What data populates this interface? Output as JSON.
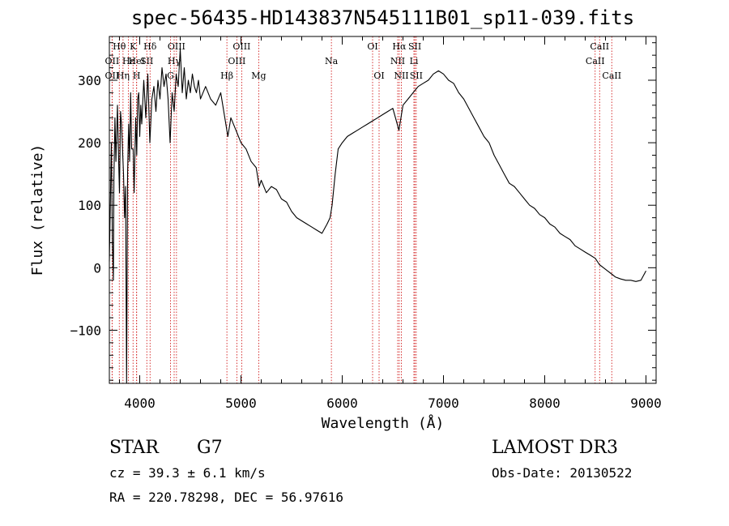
{
  "title": "spec-56435-HD143837N545111B01_sp11-039.fits",
  "info": {
    "object_class": "STAR",
    "subclass": "G7",
    "survey": "LAMOST DR3",
    "cz": "cz = 39.3 ± 6.1 km/s",
    "obs_date": "Obs-Date: 20130522",
    "coords": "RA = 220.78298, DEC =  56.97616"
  },
  "chart_data": {
    "type": "line",
    "title": "spec-56435-HD143837N545111B01_sp11-039.fits",
    "xlabel": "Wavelength (Å)",
    "ylabel": "Flux (relative)",
    "xlim": [
      3700,
      9100
    ],
    "ylim": [
      -185,
      370
    ],
    "xticks": [
      4000,
      5000,
      6000,
      7000,
      8000,
      9000
    ],
    "yticks": [
      -100,
      0,
      100,
      200,
      300
    ],
    "series": [
      {
        "name": "flux",
        "points": [
          [
            3700,
            10
          ],
          [
            3720,
            200
          ],
          [
            3730,
            40
          ],
          [
            3740,
            -20
          ],
          [
            3745,
            140
          ],
          [
            3755,
            240
          ],
          [
            3765,
            170
          ],
          [
            3780,
            260
          ],
          [
            3790,
            180
          ],
          [
            3800,
            120
          ],
          [
            3810,
            250
          ],
          [
            3820,
            230
          ],
          [
            3840,
            150
          ],
          [
            3850,
            80
          ],
          [
            3860,
            130
          ],
          [
            3870,
            -185
          ],
          [
            3880,
            150
          ],
          [
            3890,
            230
          ],
          [
            3900,
            170
          ],
          [
            3910,
            280
          ],
          [
            3920,
            190
          ],
          [
            3935,
            190
          ],
          [
            3945,
            120
          ],
          [
            3960,
            240
          ],
          [
            3970,
            180
          ],
          [
            3980,
            270
          ],
          [
            3990,
            280
          ],
          [
            4000,
            210
          ],
          [
            4010,
            260
          ],
          [
            4020,
            230
          ],
          [
            4040,
            300
          ],
          [
            4060,
            240
          ],
          [
            4080,
            310
          ],
          [
            4100,
            200
          ],
          [
            4120,
            270
          ],
          [
            4140,
            290
          ],
          [
            4160,
            250
          ],
          [
            4180,
            300
          ],
          [
            4200,
            270
          ],
          [
            4220,
            320
          ],
          [
            4240,
            290
          ],
          [
            4260,
            310
          ],
          [
            4280,
            270
          ],
          [
            4300,
            200
          ],
          [
            4320,
            280
          ],
          [
            4340,
            250
          ],
          [
            4360,
            310
          ],
          [
            4380,
            290
          ],
          [
            4400,
            350
          ],
          [
            4420,
            280
          ],
          [
            4440,
            320
          ],
          [
            4460,
            270
          ],
          [
            4480,
            300
          ],
          [
            4500,
            280
          ],
          [
            4520,
            310
          ],
          [
            4540,
            290
          ],
          [
            4560,
            280
          ],
          [
            4580,
            300
          ],
          [
            4600,
            270
          ],
          [
            4650,
            290
          ],
          [
            4700,
            270
          ],
          [
            4750,
            260
          ],
          [
            4800,
            280
          ],
          [
            4850,
            230
          ],
          [
            4870,
            210
          ],
          [
            4900,
            240
          ],
          [
            4950,
            220
          ],
          [
            5000,
            200
          ],
          [
            5050,
            190
          ],
          [
            5100,
            170
          ],
          [
            5150,
            160
          ],
          [
            5180,
            130
          ],
          [
            5200,
            140
          ],
          [
            5250,
            120
          ],
          [
            5300,
            130
          ],
          [
            5350,
            125
          ],
          [
            5400,
            110
          ],
          [
            5450,
            105
          ],
          [
            5500,
            90
          ],
          [
            5550,
            80
          ],
          [
            5600,
            75
          ],
          [
            5650,
            70
          ],
          [
            5700,
            65
          ],
          [
            5750,
            60
          ],
          [
            5800,
            55
          ],
          [
            5850,
            70
          ],
          [
            5880,
            80
          ],
          [
            5900,
            100
          ],
          [
            5930,
            150
          ],
          [
            5960,
            190
          ],
          [
            6000,
            200
          ],
          [
            6050,
            210
          ],
          [
            6100,
            215
          ],
          [
            6150,
            220
          ],
          [
            6200,
            225
          ],
          [
            6250,
            230
          ],
          [
            6300,
            235
          ],
          [
            6350,
            240
          ],
          [
            6400,
            245
          ],
          [
            6450,
            250
          ],
          [
            6500,
            255
          ],
          [
            6560,
            220
          ],
          [
            6600,
            260
          ],
          [
            6650,
            270
          ],
          [
            6700,
            280
          ],
          [
            6750,
            290
          ],
          [
            6800,
            295
          ],
          [
            6850,
            300
          ],
          [
            6900,
            310
          ],
          [
            6950,
            315
          ],
          [
            7000,
            310
          ],
          [
            7050,
            300
          ],
          [
            7100,
            295
          ],
          [
            7150,
            280
          ],
          [
            7200,
            270
          ],
          [
            7250,
            255
          ],
          [
            7300,
            240
          ],
          [
            7350,
            225
          ],
          [
            7400,
            210
          ],
          [
            7450,
            200
          ],
          [
            7500,
            180
          ],
          [
            7550,
            165
          ],
          [
            7600,
            150
          ],
          [
            7650,
            135
          ],
          [
            7700,
            130
          ],
          [
            7750,
            120
          ],
          [
            7800,
            110
          ],
          [
            7850,
            100
          ],
          [
            7900,
            95
          ],
          [
            7950,
            85
          ],
          [
            8000,
            80
          ],
          [
            8050,
            70
          ],
          [
            8100,
            65
          ],
          [
            8150,
            55
          ],
          [
            8200,
            50
          ],
          [
            8250,
            45
          ],
          [
            8300,
            35
          ],
          [
            8350,
            30
          ],
          [
            8400,
            25
          ],
          [
            8450,
            20
          ],
          [
            8500,
            15
          ],
          [
            8540,
            5
          ],
          [
            8580,
            0
          ],
          [
            8620,
            -5
          ],
          [
            8660,
            -10
          ],
          [
            8700,
            -15
          ],
          [
            8750,
            -18
          ],
          [
            8800,
            -20
          ],
          [
            8850,
            -20
          ],
          [
            8900,
            -22
          ],
          [
            8950,
            -20
          ],
          [
            9000,
            -5
          ]
        ]
      }
    ],
    "line_markers": [
      {
        "label": "Hθ",
        "wavelength": 3798,
        "row": 0
      },
      {
        "label": "K",
        "wavelength": 3934,
        "row": 0
      },
      {
        "label": "Hδ",
        "wavelength": 4102,
        "row": 0
      },
      {
        "label": "OII",
        "wavelength": 3727,
        "row": 1
      },
      {
        "label": "Hε",
        "wavelength": 3889,
        "row": 1
      },
      {
        "label": "HeI",
        "wavelength": 3970,
        "row": 1
      },
      {
        "label": "SII",
        "wavelength": 4070,
        "row": 1
      },
      {
        "label": "OII",
        "wavelength": 3727,
        "row": 2
      },
      {
        "label": "Hη",
        "wavelength": 3835,
        "row": 2
      },
      {
        "label": "H",
        "wavelength": 3969,
        "row": 2
      },
      {
        "label": "OIII",
        "wavelength": 4363,
        "row": 0
      },
      {
        "label": "Hγ",
        "wavelength": 4340,
        "row": 1
      },
      {
        "label": "G",
        "wavelength": 4304,
        "row": 2
      },
      {
        "label": "OIII",
        "wavelength": 5007,
        "row": 0
      },
      {
        "label": "OIII",
        "wavelength": 4959,
        "row": 1
      },
      {
        "label": "Hβ",
        "wavelength": 4861,
        "row": 2
      },
      {
        "label": "Mg",
        "wavelength": 5175,
        "row": 2
      },
      {
        "label": "Na",
        "wavelength": 5893,
        "row": 1
      },
      {
        "label": "OI",
        "wavelength": 6300,
        "row": 0
      },
      {
        "label": "OI",
        "wavelength": 6364,
        "row": 2
      },
      {
        "label": "Hα",
        "wavelength": 6563,
        "row": 0
      },
      {
        "label": "NII",
        "wavelength": 6548,
        "row": 1
      },
      {
        "label": "NII",
        "wavelength": 6584,
        "row": 2
      },
      {
        "label": "SII",
        "wavelength": 6717,
        "row": 0
      },
      {
        "label": "Li",
        "wavelength": 6708,
        "row": 1
      },
      {
        "label": "SII",
        "wavelength": 6731,
        "row": 2
      },
      {
        "label": "CaII",
        "wavelength": 8542,
        "row": 0
      },
      {
        "label": "CaII",
        "wavelength": 8498,
        "row": 1
      },
      {
        "label": "CaII",
        "wavelength": 8662,
        "row": 2
      }
    ]
  },
  "colors": {
    "marker_line": "#cc0000",
    "data_line": "#000000",
    "axis": "#000000"
  }
}
